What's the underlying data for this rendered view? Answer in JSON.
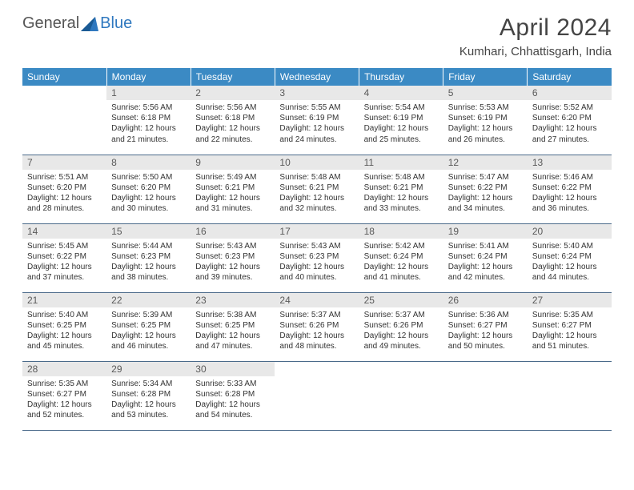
{
  "logo": {
    "general": "General",
    "blue": "Blue"
  },
  "month_title": "April 2024",
  "location": "Kumhari, Chhattisgarh, India",
  "colors": {
    "header_bg": "#3b8ac4",
    "header_text": "#ffffff",
    "daynum_bg": "#e8e8e8",
    "daynum_text": "#5a5a5a",
    "body_text": "#333333",
    "rule": "#4a6a8a",
    "logo_gray": "#555555",
    "logo_blue": "#2f78bf"
  },
  "weekdays": [
    "Sunday",
    "Monday",
    "Tuesday",
    "Wednesday",
    "Thursday",
    "Friday",
    "Saturday"
  ],
  "weeks": [
    [
      {
        "n": "",
        "sr": "",
        "ss": "",
        "d": ""
      },
      {
        "n": "1",
        "sr": "5:56 AM",
        "ss": "6:18 PM",
        "d": "12 hours and 21 minutes."
      },
      {
        "n": "2",
        "sr": "5:56 AM",
        "ss": "6:18 PM",
        "d": "12 hours and 22 minutes."
      },
      {
        "n": "3",
        "sr": "5:55 AM",
        "ss": "6:19 PM",
        "d": "12 hours and 24 minutes."
      },
      {
        "n": "4",
        "sr": "5:54 AM",
        "ss": "6:19 PM",
        "d": "12 hours and 25 minutes."
      },
      {
        "n": "5",
        "sr": "5:53 AM",
        "ss": "6:19 PM",
        "d": "12 hours and 26 minutes."
      },
      {
        "n": "6",
        "sr": "5:52 AM",
        "ss": "6:20 PM",
        "d": "12 hours and 27 minutes."
      }
    ],
    [
      {
        "n": "7",
        "sr": "5:51 AM",
        "ss": "6:20 PM",
        "d": "12 hours and 28 minutes."
      },
      {
        "n": "8",
        "sr": "5:50 AM",
        "ss": "6:20 PM",
        "d": "12 hours and 30 minutes."
      },
      {
        "n": "9",
        "sr": "5:49 AM",
        "ss": "6:21 PM",
        "d": "12 hours and 31 minutes."
      },
      {
        "n": "10",
        "sr": "5:48 AM",
        "ss": "6:21 PM",
        "d": "12 hours and 32 minutes."
      },
      {
        "n": "11",
        "sr": "5:48 AM",
        "ss": "6:21 PM",
        "d": "12 hours and 33 minutes."
      },
      {
        "n": "12",
        "sr": "5:47 AM",
        "ss": "6:22 PM",
        "d": "12 hours and 34 minutes."
      },
      {
        "n": "13",
        "sr": "5:46 AM",
        "ss": "6:22 PM",
        "d": "12 hours and 36 minutes."
      }
    ],
    [
      {
        "n": "14",
        "sr": "5:45 AM",
        "ss": "6:22 PM",
        "d": "12 hours and 37 minutes."
      },
      {
        "n": "15",
        "sr": "5:44 AM",
        "ss": "6:23 PM",
        "d": "12 hours and 38 minutes."
      },
      {
        "n": "16",
        "sr": "5:43 AM",
        "ss": "6:23 PM",
        "d": "12 hours and 39 minutes."
      },
      {
        "n": "17",
        "sr": "5:43 AM",
        "ss": "6:23 PM",
        "d": "12 hours and 40 minutes."
      },
      {
        "n": "18",
        "sr": "5:42 AM",
        "ss": "6:24 PM",
        "d": "12 hours and 41 minutes."
      },
      {
        "n": "19",
        "sr": "5:41 AM",
        "ss": "6:24 PM",
        "d": "12 hours and 42 minutes."
      },
      {
        "n": "20",
        "sr": "5:40 AM",
        "ss": "6:24 PM",
        "d": "12 hours and 44 minutes."
      }
    ],
    [
      {
        "n": "21",
        "sr": "5:40 AM",
        "ss": "6:25 PM",
        "d": "12 hours and 45 minutes."
      },
      {
        "n": "22",
        "sr": "5:39 AM",
        "ss": "6:25 PM",
        "d": "12 hours and 46 minutes."
      },
      {
        "n": "23",
        "sr": "5:38 AM",
        "ss": "6:25 PM",
        "d": "12 hours and 47 minutes."
      },
      {
        "n": "24",
        "sr": "5:37 AM",
        "ss": "6:26 PM",
        "d": "12 hours and 48 minutes."
      },
      {
        "n": "25",
        "sr": "5:37 AM",
        "ss": "6:26 PM",
        "d": "12 hours and 49 minutes."
      },
      {
        "n": "26",
        "sr": "5:36 AM",
        "ss": "6:27 PM",
        "d": "12 hours and 50 minutes."
      },
      {
        "n": "27",
        "sr": "5:35 AM",
        "ss": "6:27 PM",
        "d": "12 hours and 51 minutes."
      }
    ],
    [
      {
        "n": "28",
        "sr": "5:35 AM",
        "ss": "6:27 PM",
        "d": "12 hours and 52 minutes."
      },
      {
        "n": "29",
        "sr": "5:34 AM",
        "ss": "6:28 PM",
        "d": "12 hours and 53 minutes."
      },
      {
        "n": "30",
        "sr": "5:33 AM",
        "ss": "6:28 PM",
        "d": "12 hours and 54 minutes."
      },
      {
        "n": "",
        "sr": "",
        "ss": "",
        "d": ""
      },
      {
        "n": "",
        "sr": "",
        "ss": "",
        "d": ""
      },
      {
        "n": "",
        "sr": "",
        "ss": "",
        "d": ""
      },
      {
        "n": "",
        "sr": "",
        "ss": "",
        "d": ""
      }
    ]
  ]
}
